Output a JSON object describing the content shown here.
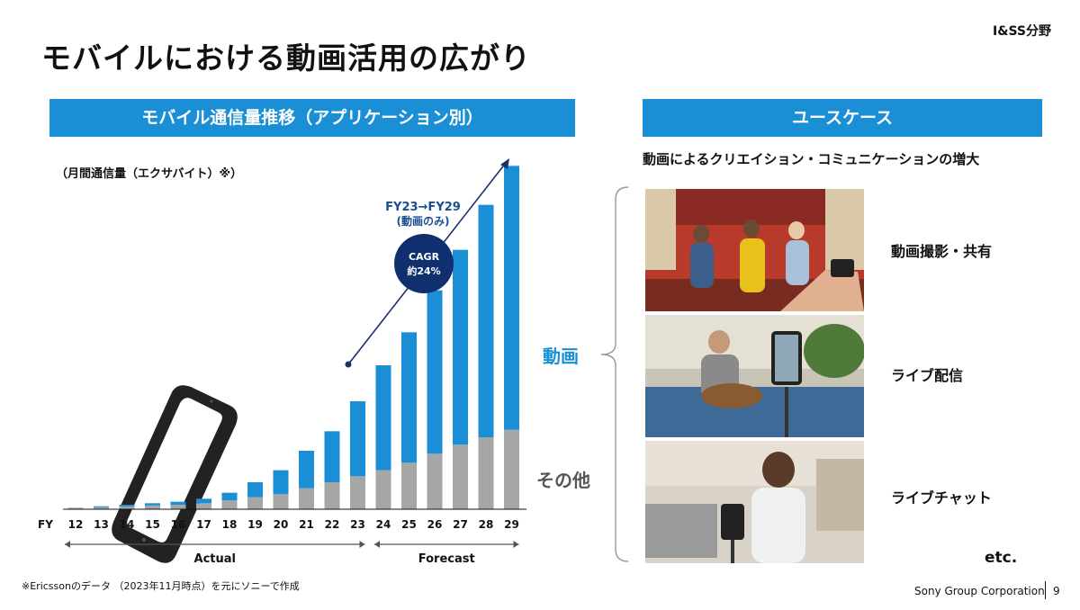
{
  "header": {
    "title": "モバイルにおける動画活用の広がり",
    "division": "I&SS分野"
  },
  "left_panel": {
    "heading": "モバイル通信量推移（アプリケーション別）",
    "unit_label": "（月間通信量（エクサバイト）※）"
  },
  "right_panel": {
    "heading": "ユースケース",
    "subheading": "動画によるクリエイション・コミュニケーションの増大",
    "use_cases": [
      {
        "label": "動画撮影・共有",
        "icon": "dance-video-photo"
      },
      {
        "label": "ライブ配信",
        "icon": "guitar-livestream-photo"
      },
      {
        "label": "ライブチャット",
        "icon": "video-chat-photo"
      }
    ],
    "etc": "etc."
  },
  "chart_data": {
    "type": "bar",
    "stacked": true,
    "x_axis_prefix": "FY",
    "categories": [
      "12",
      "13",
      "14",
      "15",
      "16",
      "17",
      "18",
      "19",
      "20",
      "21",
      "22",
      "23",
      "24",
      "25",
      "26",
      "27",
      "28",
      "29"
    ],
    "series": [
      {
        "name": "その他",
        "color": "#a6a6a6",
        "values": [
          1,
          1.5,
          2,
          2.5,
          3,
          4,
          6,
          8,
          10,
          14,
          18,
          22,
          26,
          31,
          37,
          43,
          48,
          53
        ]
      },
      {
        "name": "動画",
        "color": "#1a8fd6",
        "values": [
          0,
          0.5,
          1,
          1.5,
          2,
          3,
          5,
          10,
          16,
          25,
          34,
          50,
          70,
          87,
          109,
          130,
          155,
          176
        ]
      }
    ],
    "annotation": {
      "range": "FY23→FY29",
      "range_note": "(動画のみ)",
      "cagr_label": "CAGR",
      "cagr_value": "約24%"
    },
    "periods": [
      {
        "label": "Actual",
        "from": "12",
        "to": "23"
      },
      {
        "label": "Forecast",
        "from": "24",
        "to": "29"
      }
    ],
    "ylim": [
      0,
      240
    ],
    "grid": false,
    "axis_color": "#111111"
  },
  "footer": {
    "footnote": "※Ericssonのデータ （2023年11月時点）を元にソニーで作成",
    "company": "Sony Group Corporation",
    "page": "9"
  }
}
